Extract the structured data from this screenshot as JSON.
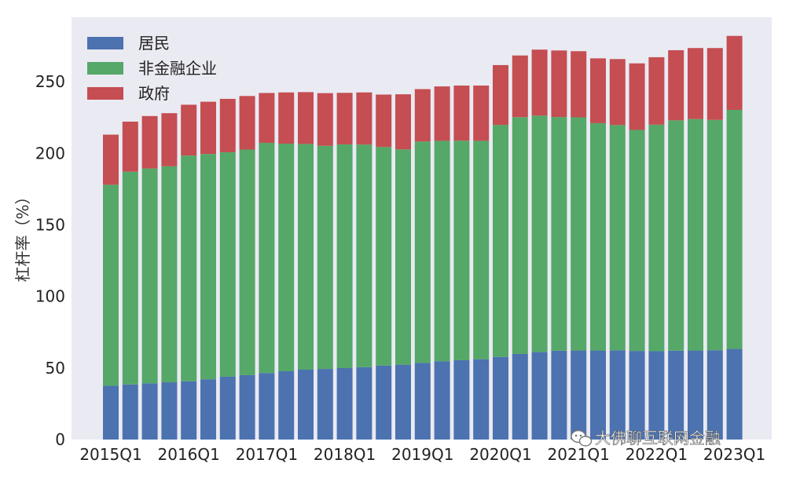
{
  "chart_data": {
    "type": "bar",
    "stacked": true,
    "title": "",
    "xlabel": "",
    "ylabel": "杠杆率（%）",
    "ylim": [
      0,
      295
    ],
    "yticks": [
      0,
      50,
      100,
      150,
      200,
      250
    ],
    "grid": false,
    "legend_position": "top-left",
    "background": "#eaeaf2",
    "categories": [
      "2015Q1",
      "2015Q2",
      "2015Q3",
      "2015Q4",
      "2016Q1",
      "2016Q2",
      "2016Q3",
      "2016Q4",
      "2017Q1",
      "2017Q2",
      "2017Q3",
      "2017Q4",
      "2018Q1",
      "2018Q2",
      "2018Q3",
      "2018Q4",
      "2019Q1",
      "2019Q2",
      "2019Q3",
      "2019Q4",
      "2020Q1",
      "2020Q2",
      "2020Q3",
      "2020Q4",
      "2021Q1",
      "2021Q2",
      "2021Q3",
      "2021Q4",
      "2022Q1",
      "2022Q2",
      "2022Q3",
      "2022Q4",
      "2023Q1"
    ],
    "xtick_labels": [
      "2015Q1",
      "2016Q1",
      "2017Q1",
      "2018Q1",
      "2019Q1",
      "2020Q1",
      "2021Q1",
      "2022Q1",
      "2023Q1"
    ],
    "series": [
      {
        "name": "居民",
        "color": "#4c72b0",
        "values": [
          37.6,
          38.5,
          39.3,
          40.0,
          40.7,
          42.1,
          43.9,
          45.0,
          46.5,
          47.7,
          48.8,
          49.3,
          49.9,
          50.6,
          51.7,
          52.3,
          53.6,
          54.7,
          55.4,
          56.1,
          57.7,
          59.8,
          61.1,
          62.0,
          62.2,
          62.2,
          62.3,
          61.9,
          61.7,
          62.1,
          62.2,
          62.4,
          63.3
        ]
      },
      {
        "name": "非金融企业",
        "color": "#55a868",
        "values": [
          140.4,
          148.6,
          150.1,
          150.9,
          157.7,
          157.4,
          156.8,
          157.6,
          160.8,
          159.0,
          157.7,
          155.9,
          156.3,
          155.5,
          152.7,
          150.4,
          154.6,
          154.0,
          153.4,
          152.6,
          162.1,
          165.4,
          165.2,
          163.3,
          162.9,
          158.8,
          157.4,
          154.4,
          158.3,
          160.9,
          161.7,
          160.9,
          167.0
        ]
      },
      {
        "name": "政府",
        "color": "#c44e52",
        "values": [
          35.0,
          35.0,
          36.6,
          37.1,
          35.5,
          36.5,
          37.3,
          37.4,
          34.8,
          35.8,
          36.2,
          36.8,
          36.0,
          36.4,
          36.6,
          38.5,
          36.6,
          38.0,
          38.5,
          38.6,
          41.8,
          43.1,
          46.1,
          46.5,
          46.2,
          45.3,
          46.1,
          46.5,
          47.1,
          49.0,
          49.6,
          50.2,
          51.7
        ]
      }
    ]
  },
  "watermark": {
    "icon": "wechat-icon",
    "text": "大佛聊互联网金融"
  }
}
